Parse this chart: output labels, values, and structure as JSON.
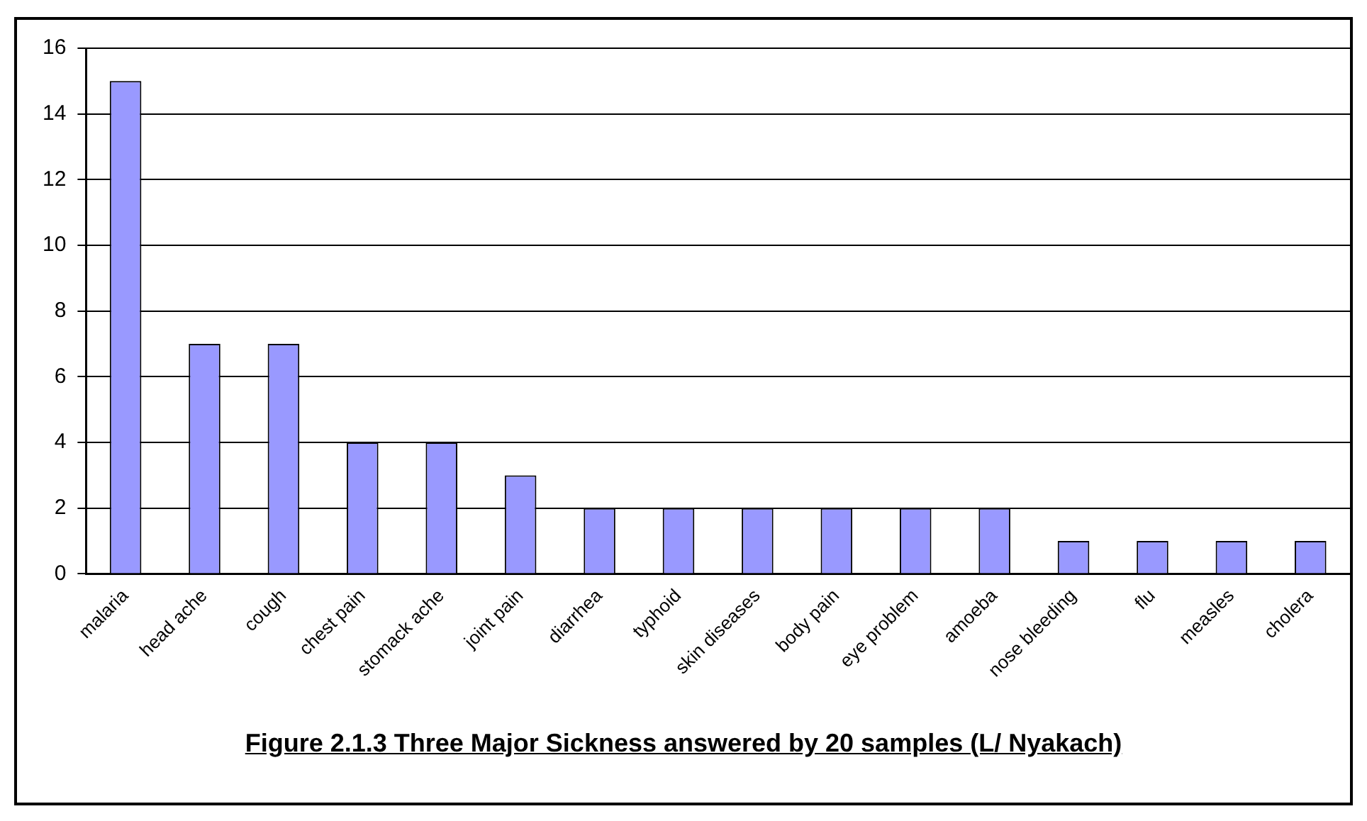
{
  "chart_data": {
    "type": "bar",
    "title": "Figure 2.1.3 Three Major Sickness answered by 20 samples (L/ Nyakach)",
    "categories": [
      "malaria",
      "head ache",
      "cough",
      "chest pain",
      "stomack ache",
      "joint pain",
      "diarrhea",
      "typhoid",
      "skin diseases",
      "body pain",
      "eye problem",
      "amoeba",
      "nose bleeding",
      "flu",
      "measles",
      "cholera"
    ],
    "values": [
      15,
      7,
      7,
      4,
      4,
      3,
      2,
      2,
      2,
      2,
      2,
      2,
      1,
      1,
      1,
      1
    ],
    "color": "#9999ff",
    "ylim": [
      0,
      16
    ],
    "yticks": [
      0,
      2,
      4,
      6,
      8,
      10,
      12,
      14,
      16
    ],
    "grid": "y",
    "legend": false
  }
}
